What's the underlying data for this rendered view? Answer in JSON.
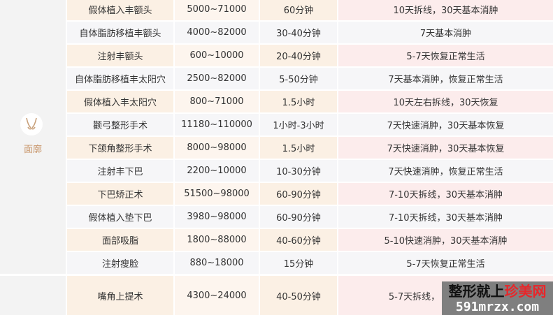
{
  "category": {
    "label": "面廓",
    "icon": "face-contour-icon",
    "accent": "#c8956a"
  },
  "rows": [
    [
      "假体植入丰额头",
      "5000~71000",
      "60分钟",
      "10天拆线，30天基本消肿"
    ],
    [
      "自体脂肪移植丰额头",
      "4000~82000",
      "30-40分钟",
      "7天基本消肿"
    ],
    [
      "注射丰额头",
      "600~10000",
      "20-40分钟",
      "5-7天恢复正常生活"
    ],
    [
      "自体脂肪移植丰太阳穴",
      "2500~82000",
      "5-50分钟",
      "7天基本消肿，恢复正常生活"
    ],
    [
      "假体植入丰太阳穴",
      "800~71000",
      "1.5小时",
      "10天左右拆线，30天恢复"
    ],
    [
      "颧弓整形手术",
      "11180~110000",
      "1小时-3小时",
      "7天快速消肿，30天基本恢复"
    ],
    [
      "下颌角整形手术",
      "8000~98000",
      "1.5小时",
      "7天快速消肿，30天基本恢复"
    ],
    [
      "注射丰下巴",
      "2200~10000",
      "10-30分钟",
      "7天快速消肿，恢复正常生活"
    ],
    [
      "下巴矫正术",
      "51500~98000",
      "60-90分钟",
      "7-10天拆线，30天基本消肿"
    ],
    [
      "假体植入垫下巴",
      "3980~98000",
      "60-90分钟",
      "7-10天拆线，30天基本消肿"
    ],
    [
      "面部吸脂",
      "1800~88000",
      "40-60分钟",
      "5-10快速消肿，30天基本消肿"
    ],
    [
      "注射瘦脸",
      "880~18000",
      "15分钟",
      "5-7天恢复正常生活"
    ]
  ],
  "last_row": [
    "嘴角上提术",
    "4300~24000",
    "40-50分钟",
    "5-7天拆线，"
  ],
  "watermark": {
    "part1": "整形就上",
    "part2": "珍美网",
    "url": "591mrzx.com",
    "red": "#e8262a"
  }
}
